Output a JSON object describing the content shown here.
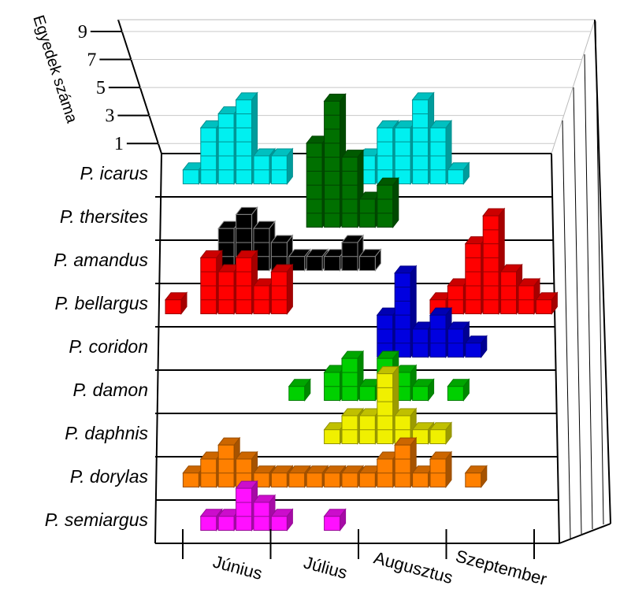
{
  "chart_data": {
    "type": "bar3d",
    "y_label": "Egyedek száma",
    "ylim": [
      0,
      9
    ],
    "yticks": [
      1,
      3,
      5,
      7,
      9
    ],
    "months": [
      "Június",
      "Július",
      "Augusztus",
      "Szeptember"
    ],
    "series": [
      {
        "name": "P. icarus",
        "color": "#00f0f0",
        "values": [
          0,
          1,
          4,
          5,
          6,
          2,
          2,
          0,
          0,
          0,
          0,
          2,
          4,
          4,
          6,
          4,
          1,
          0,
          0,
          0,
          0,
          0
        ]
      },
      {
        "name": "P. thersites",
        "color": "#007000",
        "values": [
          0,
          0,
          0,
          0,
          0,
          0,
          0,
          0,
          6,
          9,
          5,
          2,
          3,
          0,
          0,
          0,
          0,
          0,
          0,
          0,
          0,
          0
        ]
      },
      {
        "name": "P. amandus",
        "color": "#000000",
        "values": [
          0,
          0,
          0,
          3,
          4,
          3,
          2,
          1,
          1,
          1,
          2,
          1,
          0,
          0,
          0,
          0,
          0,
          0,
          0,
          0,
          0,
          0
        ]
      },
      {
        "name": "P. bellargus",
        "color": "#ff0000",
        "values": [
          1,
          0,
          4,
          3,
          4,
          2,
          3,
          0,
          0,
          0,
          0,
          0,
          0,
          0,
          0,
          1,
          2,
          5,
          7,
          3,
          2,
          1
        ]
      },
      {
        "name": "P. coridon",
        "color": "#0000e0",
        "values": [
          0,
          0,
          0,
          0,
          0,
          0,
          0,
          0,
          0,
          0,
          0,
          0,
          3,
          6,
          2,
          3,
          2,
          1,
          0,
          0,
          0,
          0
        ]
      },
      {
        "name": "P. damon",
        "color": "#00d000",
        "values": [
          0,
          0,
          0,
          0,
          0,
          0,
          0,
          1,
          0,
          2,
          3,
          1,
          3,
          2,
          1,
          0,
          1,
          0,
          0,
          0,
          0,
          0
        ]
      },
      {
        "name": "P. daphnis",
        "color": "#f0f000",
        "values": [
          0,
          0,
          0,
          0,
          0,
          0,
          0,
          0,
          0,
          1,
          2,
          2,
          5,
          2,
          1,
          1,
          0,
          0,
          0,
          0,
          0,
          0
        ]
      },
      {
        "name": "P. dorylas",
        "color": "#ff8000",
        "values": [
          0,
          1,
          2,
          3,
          2,
          1,
          1,
          1,
          1,
          1,
          1,
          1,
          2,
          3,
          1,
          2,
          0,
          1,
          0,
          0,
          0,
          0
        ]
      },
      {
        "name": "P. semiargus",
        "color": "#ff10ff",
        "values": [
          0,
          0,
          1,
          1,
          3,
          2,
          1,
          0,
          0,
          1,
          0,
          0,
          0,
          0,
          0,
          0,
          0,
          0,
          0,
          0,
          0,
          0
        ]
      }
    ]
  }
}
